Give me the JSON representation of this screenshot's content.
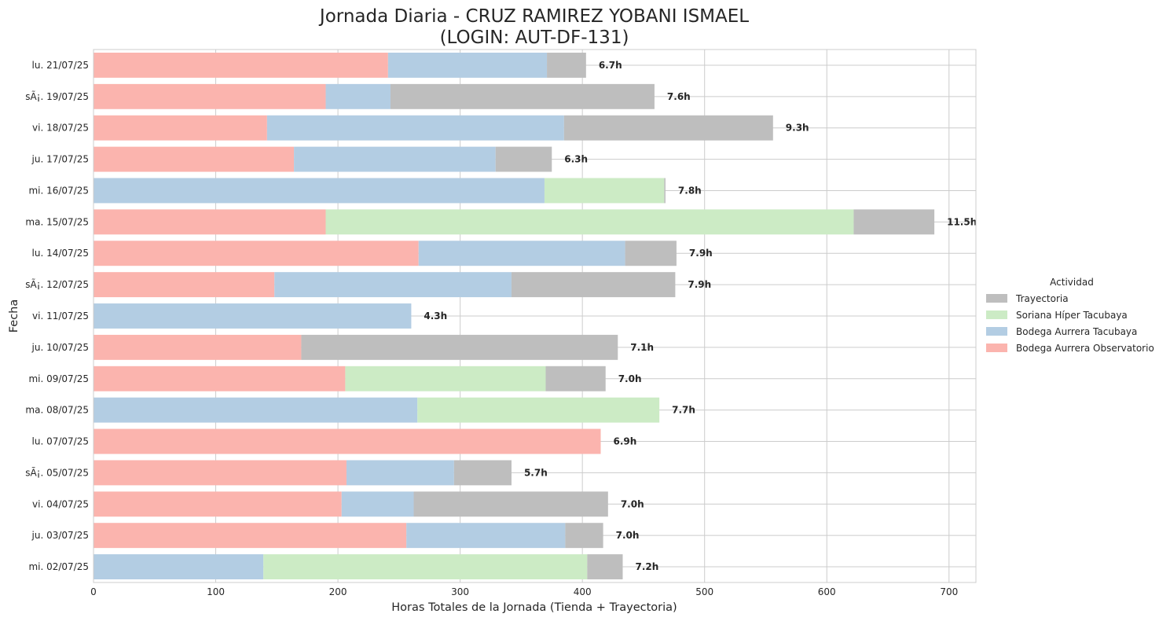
{
  "chart_data": {
    "type": "bar",
    "orientation": "horizontal",
    "stacked": true,
    "title": "Jornada Diaria - CRUZ RAMIREZ YOBANI ISMAEL",
    "subtitle": "(LOGIN: AUT-DF-131)",
    "xlabel": "Horas Totales de la Jornada (Tienda + Trayectoria)",
    "ylabel": "Fecha",
    "xlim": [
      0,
      722
    ],
    "xticks": [
      0,
      100,
      200,
      300,
      400,
      500,
      600,
      700
    ],
    "grid": true,
    "legend": {
      "title": "Actividad",
      "placement": "right"
    },
    "categories": [
      "lu. 21/07/25",
      "sÃ¡. 19/07/25",
      "vi. 18/07/25",
      "ju. 17/07/25",
      "mi. 16/07/25",
      "ma. 15/07/25",
      "lu. 14/07/25",
      "sÃ¡. 12/07/25",
      "vi. 11/07/25",
      "ju. 10/07/25",
      "mi. 09/07/25",
      "ma. 08/07/25",
      "lu. 07/07/25",
      "sÃ¡. 05/07/25",
      "vi. 04/07/25",
      "ju. 03/07/25",
      "mi. 02/07/25"
    ],
    "series": [
      {
        "name": "Bodega Aurrera Observatorio",
        "color": "#fbb4ae",
        "values": [
          241,
          190,
          142,
          164,
          0,
          190,
          266,
          148,
          0,
          170,
          206,
          0,
          415,
          207,
          203,
          256,
          0
        ]
      },
      {
        "name": "Bodega Aurrera Tacubaya",
        "color": "#b3cde3",
        "values": [
          130,
          53,
          243,
          165,
          369,
          0,
          169,
          194,
          260,
          0,
          0,
          265,
          0,
          88,
          59,
          130,
          139
        ]
      },
      {
        "name": "Soriana Híper Tacubaya",
        "color": "#ccebc5",
        "values": [
          0,
          0,
          0,
          0,
          98,
          432,
          0,
          0,
          0,
          0,
          164,
          198,
          0,
          0,
          0,
          0,
          265
        ]
      },
      {
        "name": "Trayectoria",
        "color": "#bebebe",
        "values": [
          32,
          216,
          171,
          46,
          1,
          66,
          42,
          134,
          0,
          259,
          49,
          0,
          0,
          47,
          159,
          31,
          29
        ]
      }
    ],
    "totals": [
      "6.7h",
      "7.6h",
      "9.3h",
      "6.3h",
      "7.8h",
      "11.5h",
      "7.9h",
      "7.9h",
      "4.3h",
      "7.1h",
      "7.0h",
      "7.7h",
      "6.9h",
      "5.7h",
      "7.0h",
      "7.0h",
      "7.2h"
    ],
    "legend_order": [
      "Trayectoria",
      "Soriana Híper Tacubaya",
      "Bodega Aurrera Tacubaya",
      "Bodega Aurrera Observatorio"
    ]
  }
}
